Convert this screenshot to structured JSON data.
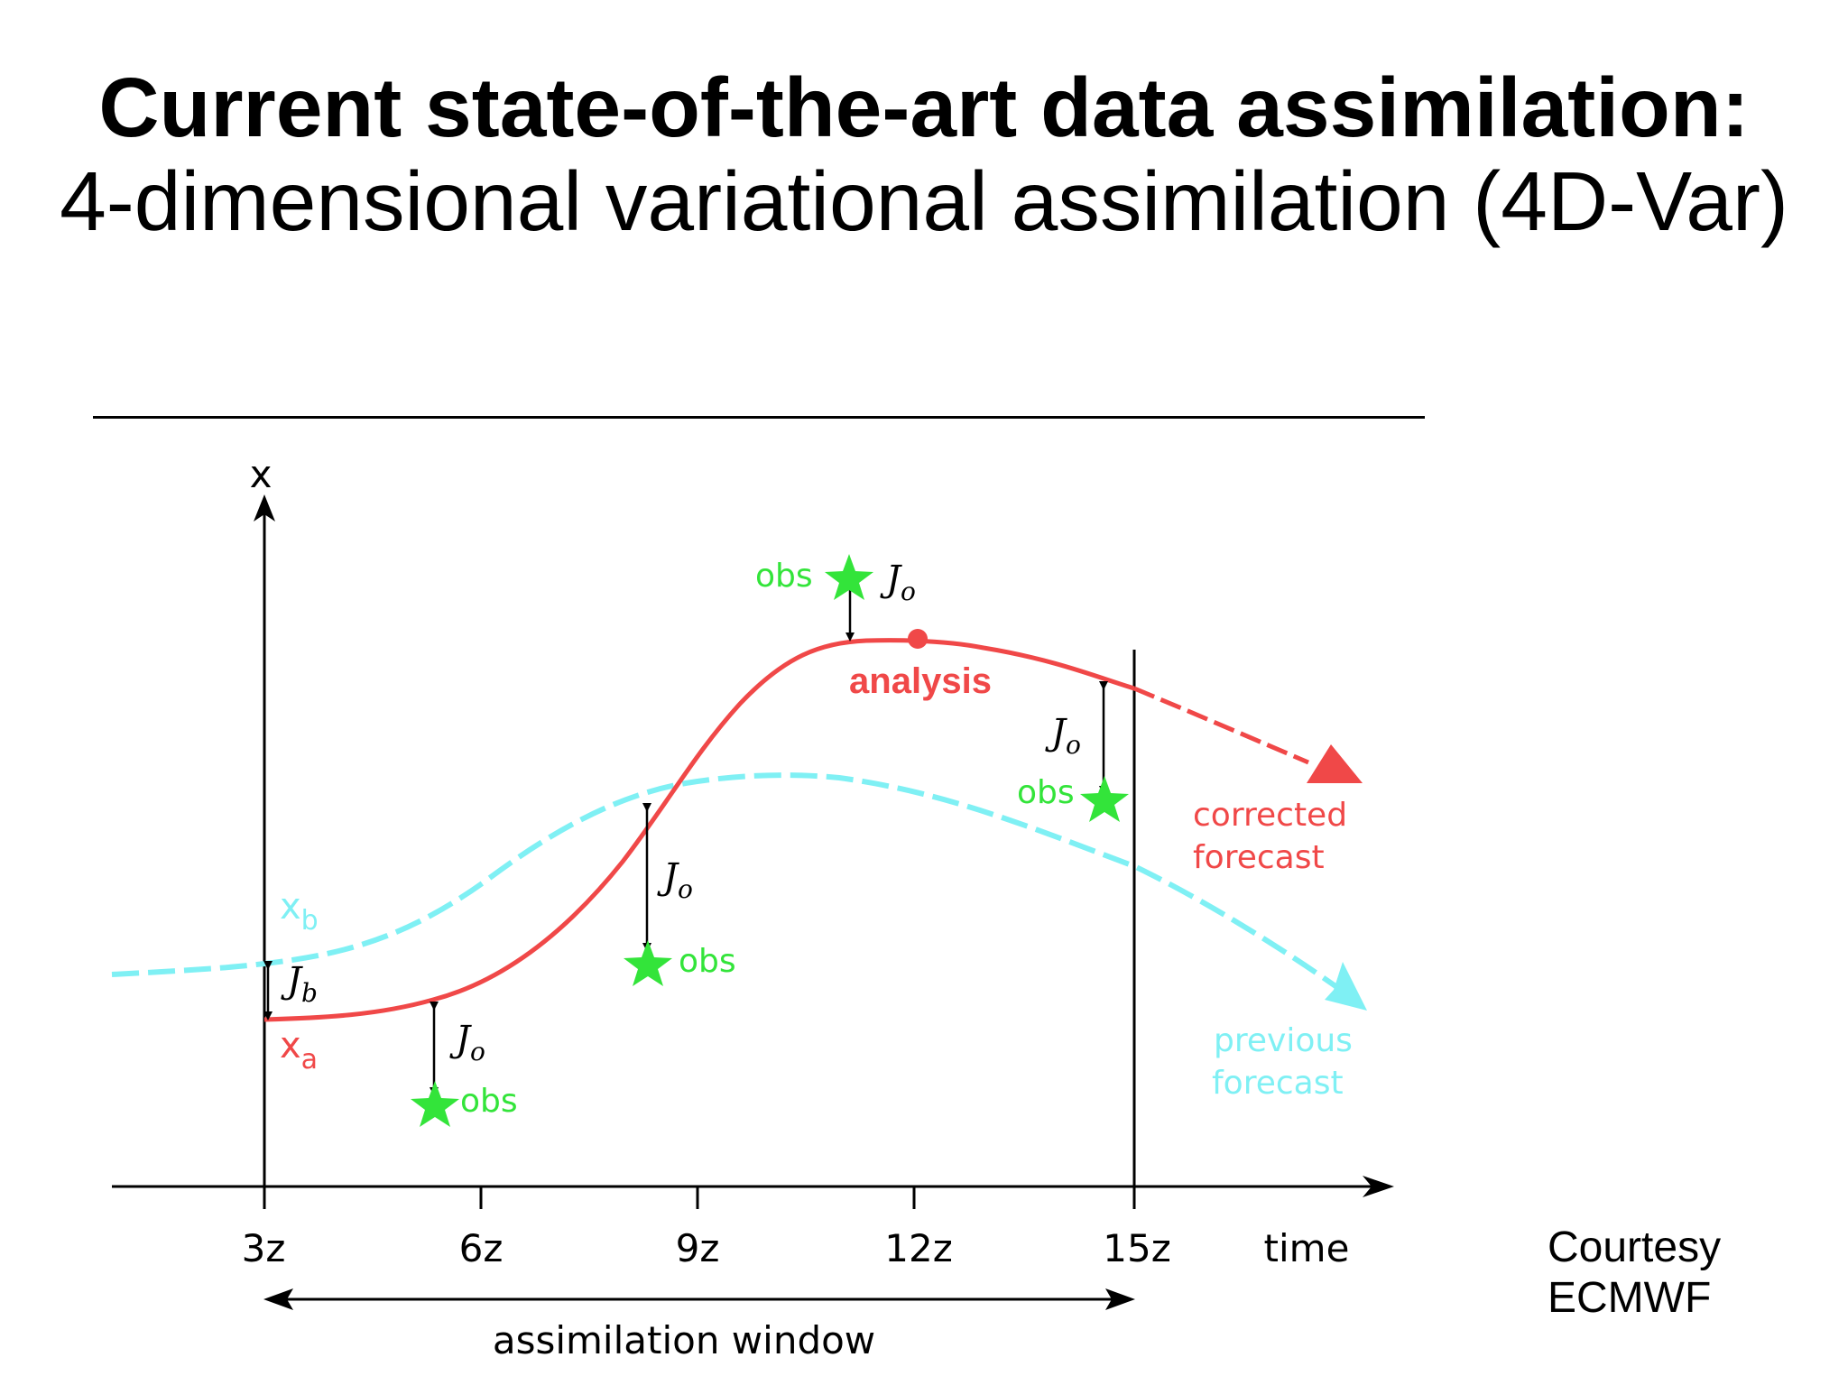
{
  "title": {
    "line1": "Current state-of-the-art data assimilation:",
    "line2": "4-dimensional variational assimilation (4D-Var)"
  },
  "diagram": {
    "y_axis_label": "x",
    "x_axis_label": "time",
    "time_ticks": [
      "3z",
      "6z",
      "9z",
      "12z",
      "15z"
    ],
    "window_label": "assimilation window",
    "labels": {
      "xb": "x",
      "xb_sub": "b",
      "xa": "x",
      "xa_sub": "a",
      "jb": "J",
      "jb_sub": "b",
      "jo": "J",
      "jo_sub": "o",
      "obs": "obs",
      "analysis": "analysis",
      "corrected_line1": "corrected",
      "corrected_line2": "forecast",
      "previous_line1": "previous",
      "previous_line2": "forecast"
    },
    "colors": {
      "analysis": "#f04848",
      "background": "#7ff0f4",
      "obs": "#33e43a",
      "axis": "#000000"
    }
  },
  "credit": {
    "line1": "Courtesy",
    "line2": "ECMWF"
  }
}
